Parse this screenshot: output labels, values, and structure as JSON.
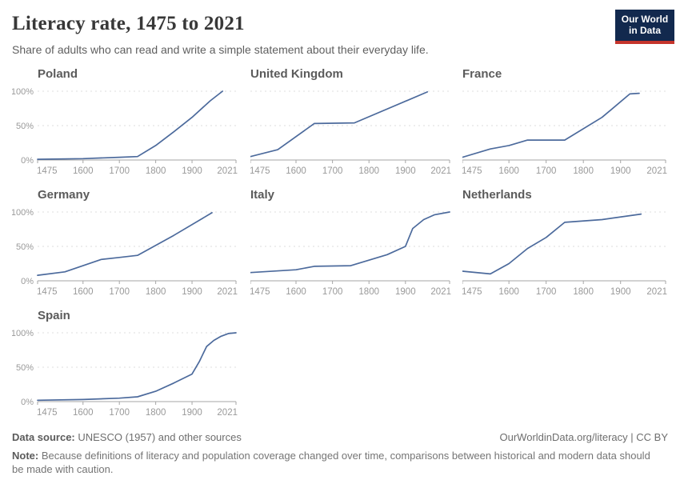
{
  "header": {
    "title": "Literacy rate, 1475 to 2021",
    "subtitle": "Share of adults who can read and write a simple statement about their everyday life."
  },
  "logo": {
    "line1": "Our World",
    "line2": "in Data",
    "bg_color": "#12294e",
    "bar_color": "#c5352c"
  },
  "chart_data": {
    "type": "line",
    "title": "Literacy rate, 1475 to 2021",
    "xlabel": "",
    "ylabel": "",
    "x_domain": [
      1475,
      2021
    ],
    "x_ticks": [
      1475,
      1600,
      1700,
      1800,
      1900,
      2021
    ],
    "ylim": [
      0,
      100
    ],
    "y_ticks": [
      0,
      50,
      100
    ],
    "y_tick_labels": [
      "0%",
      "50%",
      "100%"
    ],
    "grid": "horizontal-dashed",
    "legend": "none (small multiples, one panel per country)",
    "line_color": "#4C6A9C",
    "panels": [
      {
        "name": "Poland",
        "points": [
          [
            1475,
            1
          ],
          [
            1600,
            2
          ],
          [
            1700,
            4
          ],
          [
            1750,
            5
          ],
          [
            1800,
            21
          ],
          [
            1850,
            41
          ],
          [
            1900,
            62
          ],
          [
            1950,
            86
          ],
          [
            1984,
            100
          ]
        ]
      },
      {
        "name": "United Kingdom",
        "points": [
          [
            1475,
            5
          ],
          [
            1550,
            15
          ],
          [
            1650,
            53
          ],
          [
            1760,
            54
          ],
          [
            1960,
            99
          ]
        ]
      },
      {
        "name": "France",
        "points": [
          [
            1475,
            4
          ],
          [
            1550,
            16
          ],
          [
            1600,
            21
          ],
          [
            1650,
            29
          ],
          [
            1750,
            29
          ],
          [
            1850,
            62
          ],
          [
            1925,
            96
          ],
          [
            1950,
            97
          ]
        ]
      },
      {
        "name": "Germany",
        "points": [
          [
            1475,
            8
          ],
          [
            1550,
            13
          ],
          [
            1600,
            22
          ],
          [
            1650,
            31
          ],
          [
            1700,
            34
          ],
          [
            1750,
            37
          ],
          [
            1850,
            66
          ],
          [
            1955,
            99
          ]
        ]
      },
      {
        "name": "Italy",
        "points": [
          [
            1475,
            12
          ],
          [
            1600,
            16
          ],
          [
            1650,
            21
          ],
          [
            1750,
            22
          ],
          [
            1850,
            38
          ],
          [
            1900,
            50
          ],
          [
            1920,
            76
          ],
          [
            1950,
            89
          ],
          [
            1980,
            96
          ],
          [
            2021,
            100
          ]
        ]
      },
      {
        "name": "Netherlands",
        "points": [
          [
            1475,
            14
          ],
          [
            1550,
            10
          ],
          [
            1600,
            25
          ],
          [
            1650,
            47
          ],
          [
            1700,
            63
          ],
          [
            1750,
            85
          ],
          [
            1850,
            89
          ],
          [
            1955,
            97
          ]
        ]
      },
      {
        "name": "Spain",
        "points": [
          [
            1475,
            2
          ],
          [
            1600,
            3
          ],
          [
            1700,
            5
          ],
          [
            1750,
            7
          ],
          [
            1800,
            15
          ],
          [
            1850,
            27
          ],
          [
            1900,
            40
          ],
          [
            1920,
            58
          ],
          [
            1940,
            80
          ],
          [
            1960,
            89
          ],
          [
            1980,
            95
          ],
          [
            2000,
            99
          ],
          [
            2021,
            100
          ]
        ]
      }
    ],
    "style": {
      "grid_color": "#dcdcdc",
      "axis_color": "#a6a6a6",
      "tick_label_color": "#999999"
    }
  },
  "footer": {
    "datasource_label": "Data source:",
    "datasource_text": " UNESCO (1957) and other sources",
    "credit": "OurWorldinData.org/literacy | CC BY",
    "note_label": "Note:",
    "note_text": " Because definitions of literacy and population coverage changed over time, comparisons between historical and modern data should be made with caution."
  }
}
